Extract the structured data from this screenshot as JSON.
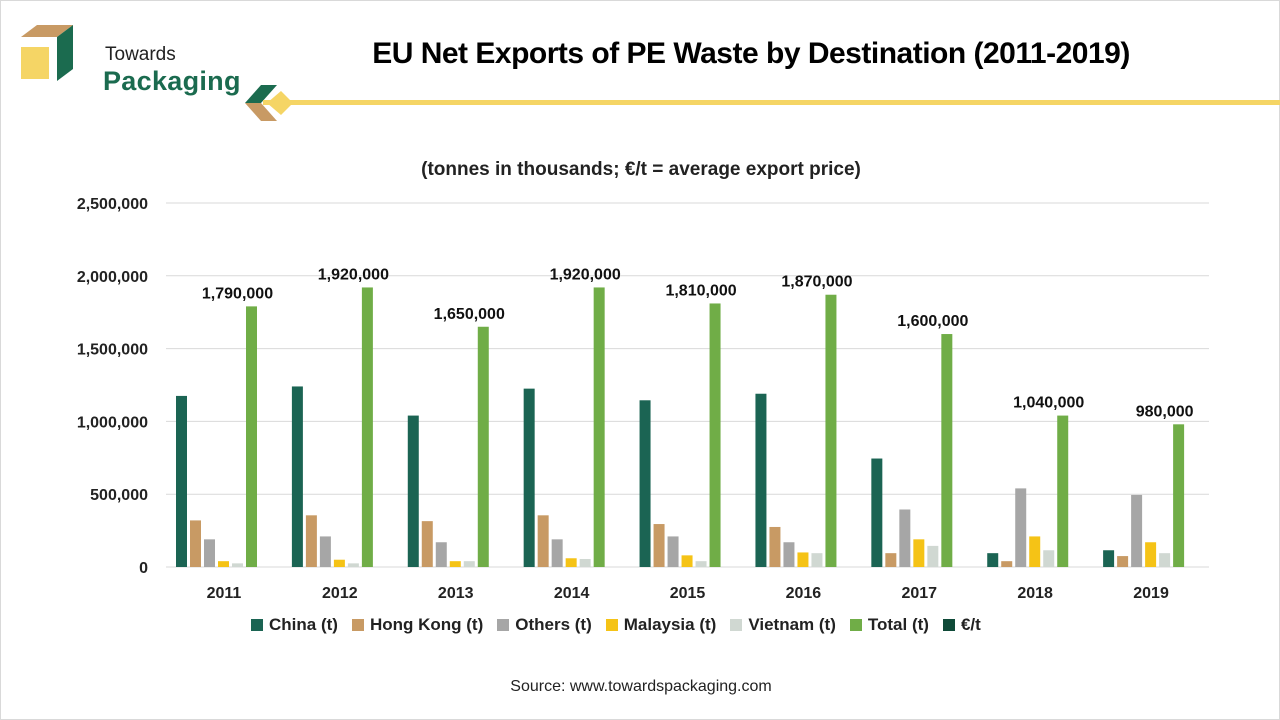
{
  "brand": {
    "line1": "Towards",
    "line2": "Packaging"
  },
  "source": "Source: www.towardspackaging.com",
  "colors": {
    "china": "#1b6453",
    "hongkong": "#c89a64",
    "others": "#a6a6a6",
    "malaysia": "#f5c316",
    "vietnam": "#d0d8d2",
    "total": "#70ad47",
    "price": "#0f4a38",
    "grid": "#d9d9d9"
  },
  "chart_data": {
    "type": "bar",
    "title": "EU Net Exports of PE Waste by Destination (2011-2019)",
    "subtitle": "(tonnes in thousands; €/t = average export price)",
    "xlabel": "",
    "ylabel": "",
    "ylim": [
      0,
      2500000
    ],
    "yticks": [
      0,
      500000,
      1000000,
      1500000,
      2000000,
      2500000
    ],
    "ytick_labels": [
      "0",
      "500,000",
      "1,000,000",
      "1,500,000",
      "2,000,000",
      "2,500,000"
    ],
    "grid": true,
    "legend_position": "bottom",
    "categories": [
      "2011",
      "2012",
      "2013",
      "2014",
      "2015",
      "2016",
      "2017",
      "2018",
      "2019"
    ],
    "series": [
      {
        "name": "China (t)",
        "key": "china",
        "values": [
          1175000,
          1240000,
          1040000,
          1225000,
          1145000,
          1190000,
          745000,
          95000,
          115000
        ]
      },
      {
        "name": "Hong Kong (t)",
        "key": "hongkong",
        "values": [
          320000,
          355000,
          315000,
          355000,
          295000,
          275000,
          95000,
          40000,
          75000
        ]
      },
      {
        "name": "Others (t)",
        "key": "others",
        "values": [
          190000,
          210000,
          170000,
          190000,
          210000,
          170000,
          395000,
          540000,
          495000
        ]
      },
      {
        "name": "Malaysia (t)",
        "key": "malaysia",
        "values": [
          40000,
          50000,
          40000,
          60000,
          80000,
          100000,
          190000,
          210000,
          170000
        ]
      },
      {
        "name": "Vietnam (t)",
        "key": "vietnam",
        "values": [
          25000,
          25000,
          40000,
          55000,
          40000,
          95000,
          145000,
          115000,
          95000
        ]
      },
      {
        "name": "Total (t)",
        "key": "total",
        "values": [
          1790000,
          1920000,
          1650000,
          1920000,
          1810000,
          1870000,
          1600000,
          1040000,
          980000
        ]
      },
      {
        "name": "€/t",
        "key": "price",
        "values": []
      }
    ],
    "data_labels": [
      "1,790,000",
      "1,920,000",
      "1,650,000",
      "1,920,000",
      "1,810,000",
      "1,870,000",
      "1,600,000",
      "1,040,000",
      "980,000"
    ]
  }
}
